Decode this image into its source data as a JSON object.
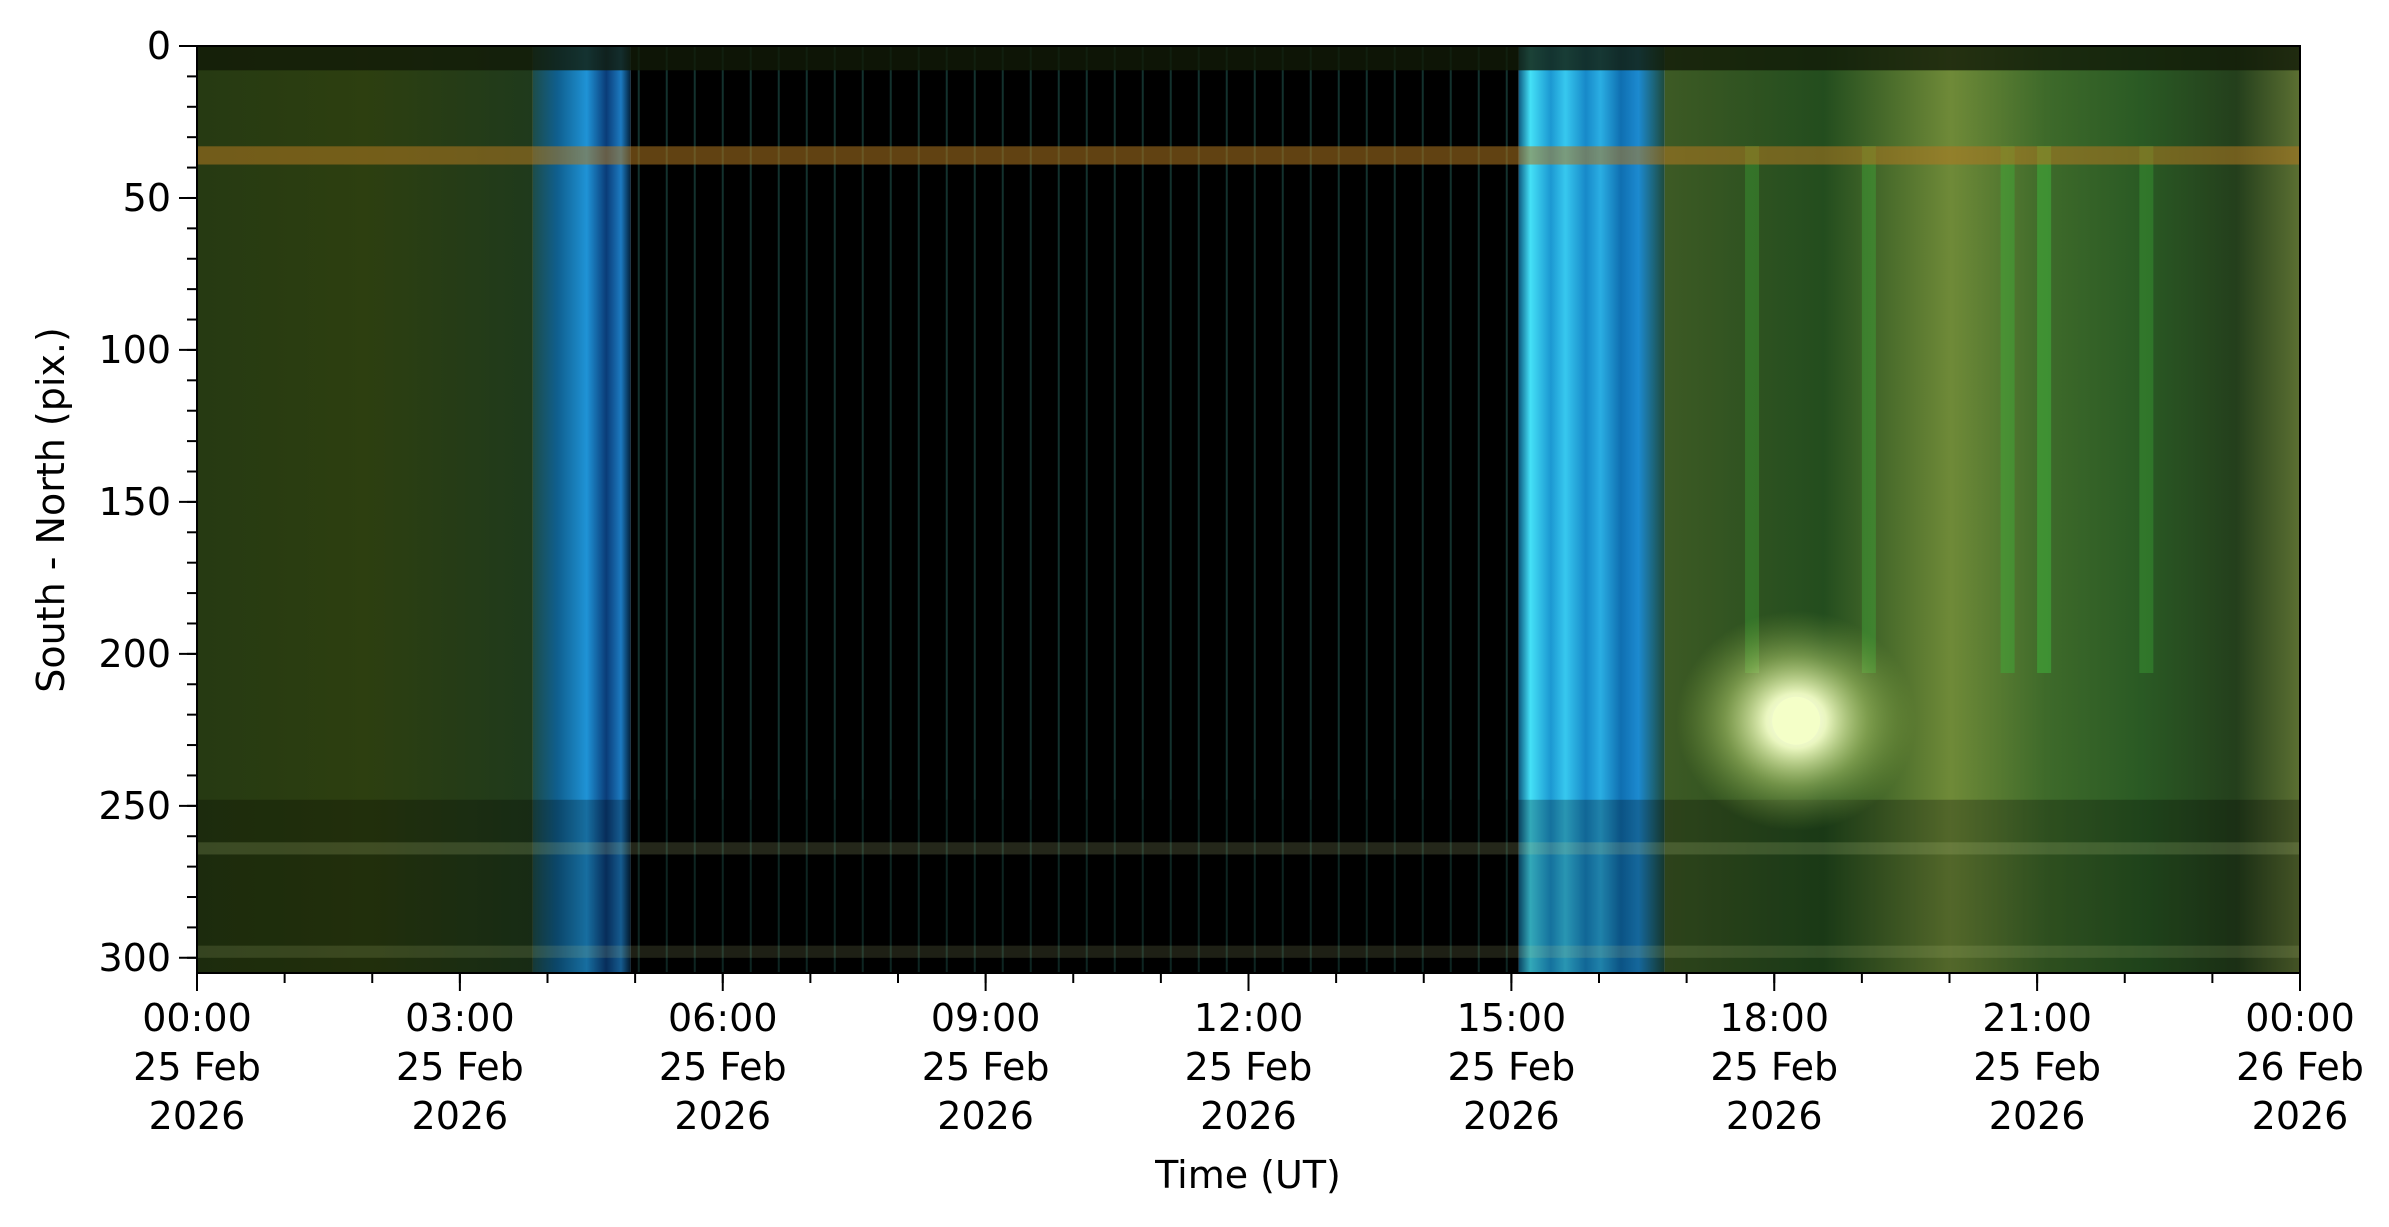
{
  "chart_data": {
    "type": "heatmap",
    "xlabel": "Time (UT)",
    "ylabel": "South - North (pix.)",
    "x_range": [
      "2026-02-25T00:00",
      "2026-02-26T00:00"
    ],
    "y_range": [
      305,
      0
    ],
    "y_inverted": true,
    "x_ticks": [
      {
        "time": "2026-02-25T00:00",
        "lines": [
          "00:00",
          "25 Feb",
          "2026"
        ]
      },
      {
        "time": "2026-02-25T03:00",
        "lines": [
          "03:00",
          "25 Feb",
          "2026"
        ]
      },
      {
        "time": "2026-02-25T06:00",
        "lines": [
          "06:00",
          "25 Feb",
          "2026"
        ]
      },
      {
        "time": "2026-02-25T09:00",
        "lines": [
          "09:00",
          "25 Feb",
          "2026"
        ]
      },
      {
        "time": "2026-02-25T12:00",
        "lines": [
          "12:00",
          "25 Feb",
          "2026"
        ]
      },
      {
        "time": "2026-02-25T15:00",
        "lines": [
          "15:00",
          "25 Feb",
          "2026"
        ]
      },
      {
        "time": "2026-02-25T18:00",
        "lines": [
          "18:00",
          "25 Feb",
          "2026"
        ]
      },
      {
        "time": "2026-02-25T21:00",
        "lines": [
          "21:00",
          "25 Feb",
          "2026"
        ]
      },
      {
        "time": "2026-02-26T00:00",
        "lines": [
          "00:00",
          "26 Feb",
          "2026"
        ]
      }
    ],
    "x_minor_tick_interval_minutes": 60,
    "y_ticks": [
      0,
      50,
      100,
      150,
      200,
      250,
      300
    ],
    "y_minor_tick_interval": 10,
    "colors": {
      "night_green": "#2a4514",
      "twilight_blue": "#1a8fd0",
      "twilight_cyan": "#3fd6f2",
      "day_black": "#000000",
      "aurora_green": "#3fb03a",
      "moon": "#f4ffc8",
      "haze_yellow": "#93a448"
    },
    "time_segments": [
      {
        "start": "00:00",
        "end": "03:50",
        "kind": "night",
        "color": "#2a3d13"
      },
      {
        "start": "03:50",
        "end": "04:57",
        "kind": "twilight",
        "color": "#1e7fbf"
      },
      {
        "start": "04:57",
        "end": "15:05",
        "kind": "day",
        "color": "#000000"
      },
      {
        "start": "15:05",
        "end": "16:45",
        "kind": "twilight",
        "color": "#2bbbe6"
      },
      {
        "start": "16:45",
        "end": "24:00",
        "kind": "night",
        "color": "#2b4a1c"
      }
    ],
    "bright_source": {
      "time": "18:15",
      "pix": 222,
      "color": "#f4ffc8"
    }
  }
}
